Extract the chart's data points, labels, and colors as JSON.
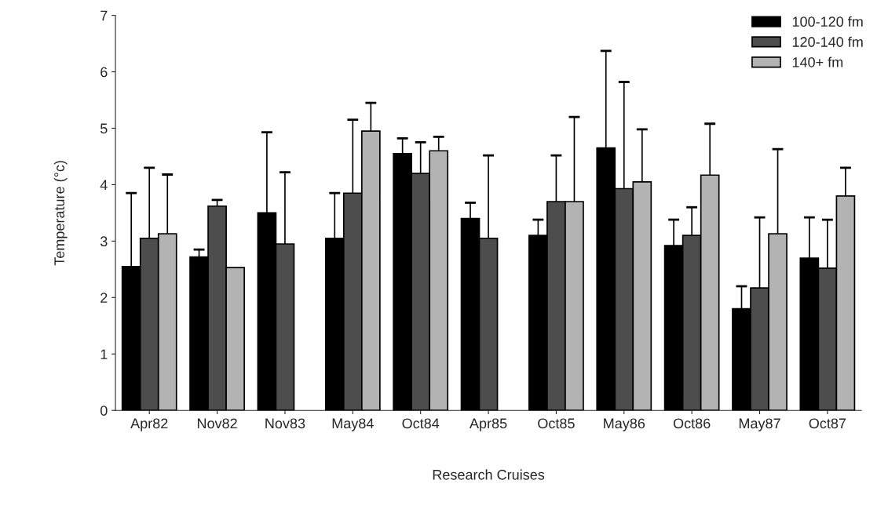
{
  "chart_data": {
    "type": "bar",
    "xlabel": "Research Cruises",
    "ylabel": "Temperature (°c)",
    "categories": [
      "Apr82",
      "Nov82",
      "Nov83",
      "May84",
      "Oct84",
      "Apr85",
      "Oct85",
      "May86",
      "Oct86",
      "May87",
      "Oct87"
    ],
    "series": [
      {
        "name": "100-120 fm",
        "color": "#000000",
        "values": [
          2.55,
          2.72,
          3.5,
          3.05,
          4.55,
          3.4,
          3.1,
          4.65,
          2.92,
          1.8,
          2.7
        ],
        "errors": [
          1.3,
          0.13,
          1.43,
          0.8,
          0.27,
          0.28,
          0.28,
          1.72,
          0.46,
          0.4,
          0.72
        ]
      },
      {
        "name": "120-140 fm",
        "color": "#4d4d4d",
        "values": [
          3.05,
          3.62,
          2.95,
          3.85,
          4.2,
          3.05,
          3.7,
          3.93,
          3.1,
          2.17,
          2.52
        ],
        "errors": [
          1.25,
          0.11,
          1.27,
          1.3,
          0.55,
          1.47,
          0.82,
          1.89,
          0.5,
          1.25,
          0.86
        ]
      },
      {
        "name": "140+ fm",
        "color": "#b3b3b3",
        "values": [
          3.13,
          2.53,
          null,
          4.95,
          4.6,
          null,
          3.7,
          4.05,
          4.17,
          3.13,
          3.8
        ],
        "errors": [
          1.05,
          null,
          null,
          0.5,
          0.25,
          null,
          1.5,
          0.93,
          0.91,
          1.5,
          0.5
        ]
      }
    ],
    "ylim": [
      0,
      7
    ],
    "yticks": [
      0,
      1,
      2,
      3,
      4,
      5,
      6,
      7
    ],
    "grid": false,
    "legend": "top right"
  }
}
